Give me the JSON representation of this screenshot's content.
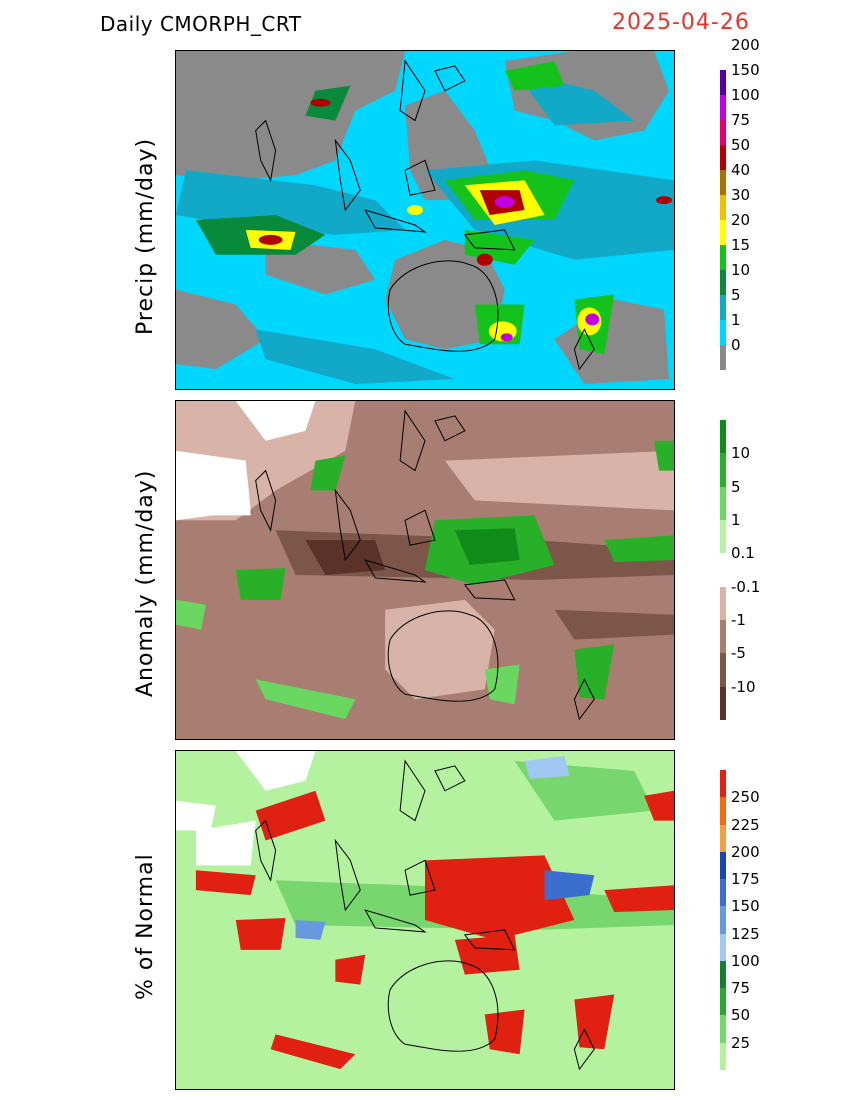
{
  "header": {
    "title": "Daily  CMORPH_CRT",
    "date": "2025-04-26"
  },
  "panels": [
    {
      "ylabel": "Precip (mm/day)",
      "colorbar": {
        "colors": [
          "#8a8a8a",
          "#00d7ff",
          "#12a9c9",
          "#078a3c",
          "#13c31b",
          "#ffff00",
          "#f0c000",
          "#b07000",
          "#b00000",
          "#e00070",
          "#c000e0",
          "#5a00a0"
        ],
        "labels": [
          "0",
          "1",
          "5",
          "10",
          "15",
          "20",
          "30",
          "40",
          "50",
          "75",
          "100",
          "150",
          "200"
        ]
      }
    },
    {
      "ylabel": "Anomaly (mm/day)",
      "colorbar": {
        "colors": [
          "#5a3228",
          "#7d564a",
          "#a87e72",
          "#d8b4a8",
          "#ffffff",
          "#b8f0a8",
          "#6ad860",
          "#28b028",
          "#108a18"
        ],
        "labels": [
          "-10",
          "-5",
          "-1",
          "-0.1",
          "0.1",
          "1",
          "5",
          "10"
        ]
      }
    },
    {
      "ylabel": "% of Normal",
      "colorbar": {
        "colors": [
          "#b4f2a0",
          "#78d66e",
          "#2aa638",
          "#128030",
          "#a0c8f0",
          "#6898e0",
          "#3c6ed0",
          "#1846b0",
          "#f0a040",
          "#f06c10",
          "#e02010"
        ],
        "labels": [
          "25",
          "50",
          "75",
          "100",
          "125",
          "150",
          "175",
          "200",
          "225",
          "250"
        ]
      }
    }
  ]
}
